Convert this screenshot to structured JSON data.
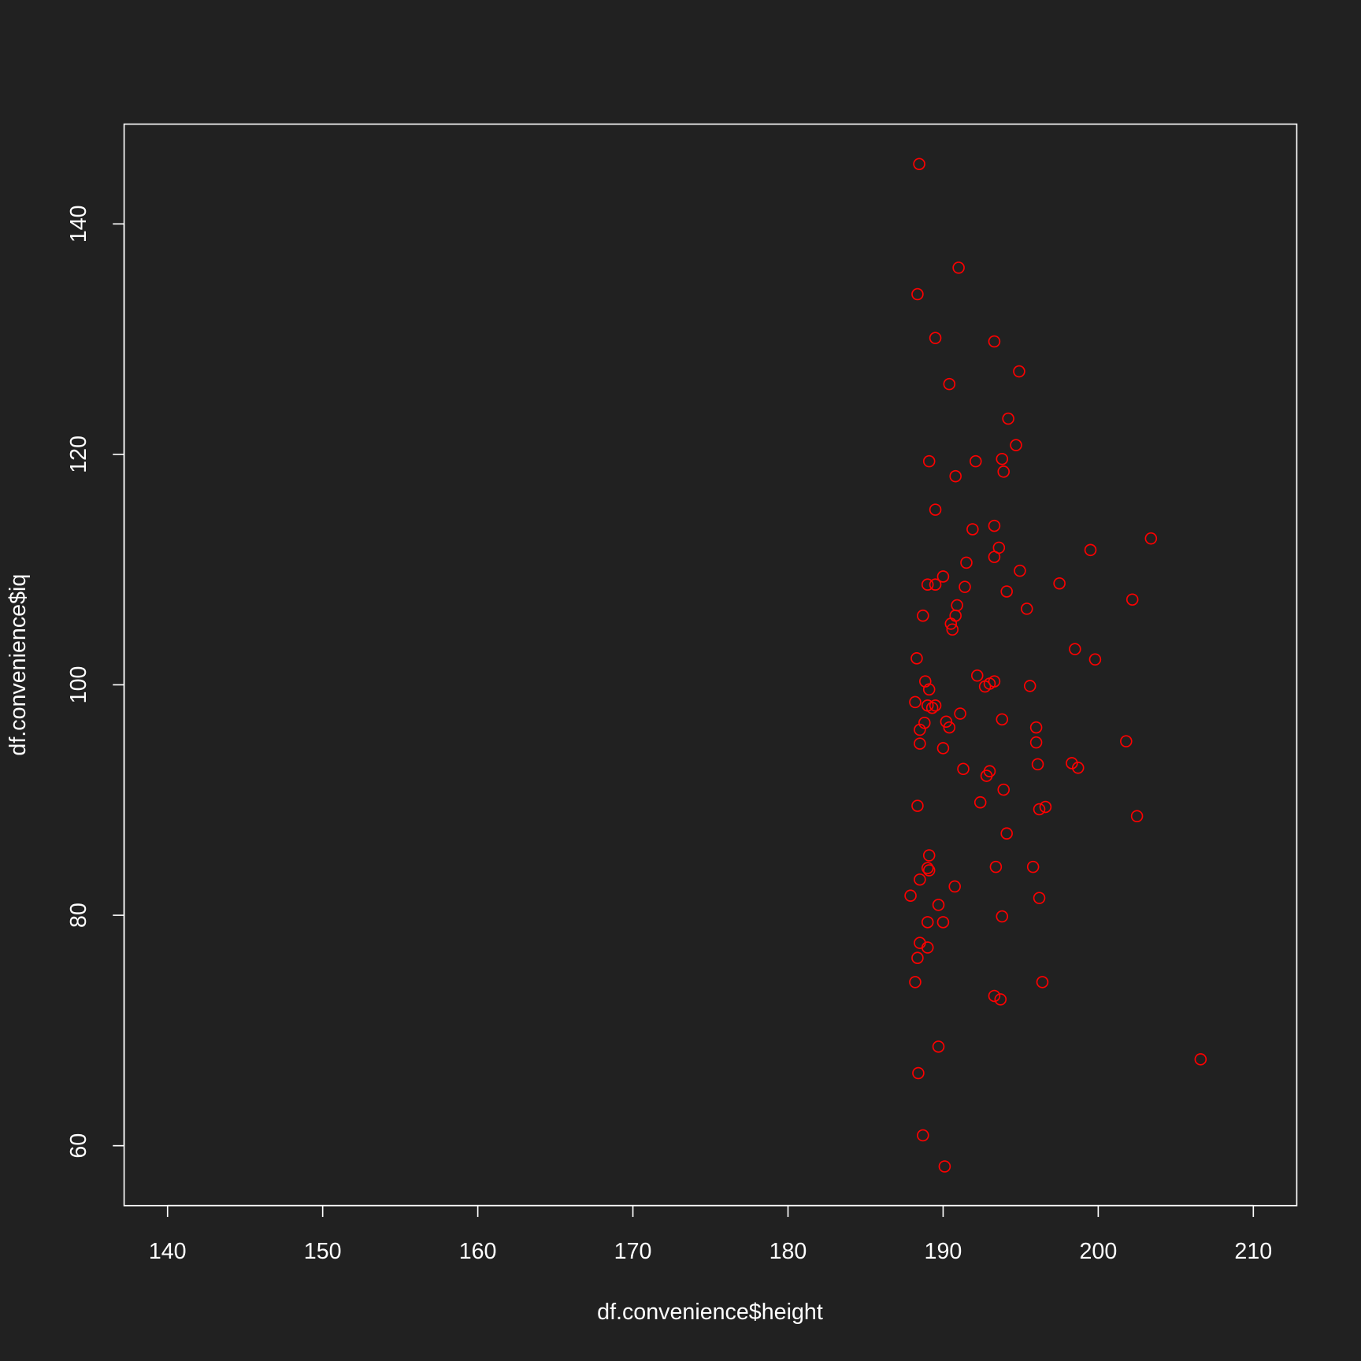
{
  "chart_data": {
    "type": "scatter",
    "x_label": "df.convenience$height",
    "y_label": "df.convenience$iq",
    "color": "#ff0000",
    "grid": false,
    "xlim": [
      137.2,
      212.8
    ],
    "ylim": [
      54.8,
      148.66
    ],
    "xticks": [
      140,
      150,
      160,
      170,
      180,
      190,
      200,
      210
    ],
    "yticks": [
      60,
      80,
      100,
      120,
      140
    ],
    "x": [
      188.46,
      191.0,
      188.35,
      189.5,
      193.3,
      194.9,
      190.4,
      194.2,
      194.7,
      189.1,
      192.1,
      193.8,
      193.9,
      190.8,
      189.5,
      191.9,
      193.3,
      193.6,
      193.3,
      199.5,
      203.4,
      191.5,
      194.95,
      190.0,
      189.0,
      189.5,
      191.4,
      194.1,
      197.5,
      202.2,
      190.9,
      195.4,
      188.7,
      190.8,
      190.5,
      190.6,
      198.5,
      188.3,
      199.8,
      192.2,
      188.85,
      193.3,
      193.0,
      192.7,
      195.6,
      189.1,
      188.2,
      189.0,
      189.3,
      189.5,
      191.1,
      188.8,
      190.2,
      193.8,
      188.5,
      190.4,
      196.0,
      188.5,
      196.0,
      201.8,
      190.0,
      196.1,
      198.3,
      198.7,
      191.3,
      193.0,
      192.8,
      193.9,
      192.4,
      188.35,
      196.2,
      196.6,
      202.5,
      194.1,
      189.1,
      189.0,
      189.1,
      193.4,
      195.8,
      188.5,
      190.75,
      187.9,
      196.2,
      189.7,
      193.8,
      189.0,
      190.0,
      188.5,
      189.0,
      188.35,
      188.2,
      196.4,
      193.3,
      193.7,
      189.7,
      206.6,
      188.4,
      188.7,
      190.1
    ],
    "values": [
      145.2,
      136.2,
      133.9,
      130.1,
      129.8,
      127.2,
      126.1,
      123.1,
      120.8,
      119.4,
      119.4,
      119.6,
      118.5,
      118.1,
      115.2,
      113.5,
      113.8,
      111.9,
      111.1,
      111.7,
      112.7,
      110.6,
      109.9,
      109.4,
      108.7,
      108.7,
      108.5,
      108.1,
      108.8,
      107.4,
      106.9,
      106.6,
      106.0,
      106.0,
      105.3,
      104.8,
      103.1,
      102.3,
      102.2,
      100.8,
      100.3,
      100.3,
      100.1,
      99.85,
      99.9,
      99.6,
      98.5,
      98.2,
      98.0,
      98.2,
      97.5,
      96.7,
      96.8,
      97.0,
      96.1,
      96.3,
      96.3,
      94.9,
      95.0,
      95.1,
      94.5,
      93.1,
      93.2,
      92.8,
      92.7,
      92.5,
      92.1,
      90.9,
      89.8,
      89.5,
      89.2,
      89.4,
      88.6,
      87.1,
      85.2,
      84.1,
      83.9,
      84.2,
      84.2,
      83.1,
      82.5,
      81.7,
      81.5,
      80.9,
      79.9,
      79.4,
      79.4,
      77.6,
      77.2,
      76.3,
      74.2,
      74.2,
      73.0,
      72.7,
      68.6,
      67.5,
      66.3,
      60.9,
      58.2
    ]
  }
}
